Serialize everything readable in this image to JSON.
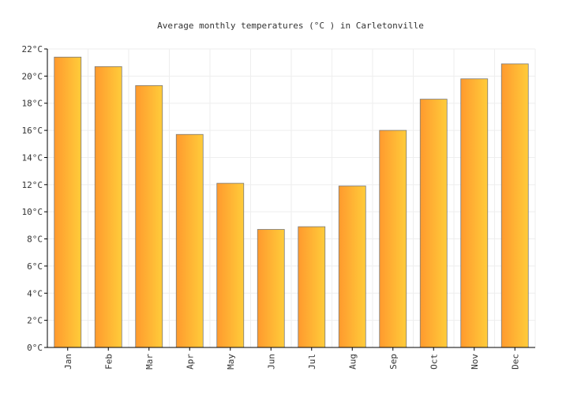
{
  "chart_data": {
    "type": "bar",
    "title": "Average monthly temperatures (°C ) in Carletonville",
    "categories": [
      "Jan",
      "Feb",
      "Mar",
      "Apr",
      "May",
      "Jun",
      "Jul",
      "Aug",
      "Sep",
      "Oct",
      "Nov",
      "Dec"
    ],
    "values": [
      21.4,
      20.7,
      19.3,
      15.7,
      12.1,
      8.7,
      8.9,
      11.9,
      16.0,
      18.3,
      19.8,
      20.9
    ],
    "y_unit": "°C",
    "ylim": [
      0,
      22
    ],
    "y_ticks": [
      0,
      2,
      4,
      6,
      8,
      10,
      12,
      14,
      16,
      18,
      20,
      22
    ],
    "grid": true,
    "colors": {
      "bar_start": "#ff9a2e",
      "bar_end": "#ffcc3a",
      "bar_stroke": "#7a7a7a"
    }
  }
}
